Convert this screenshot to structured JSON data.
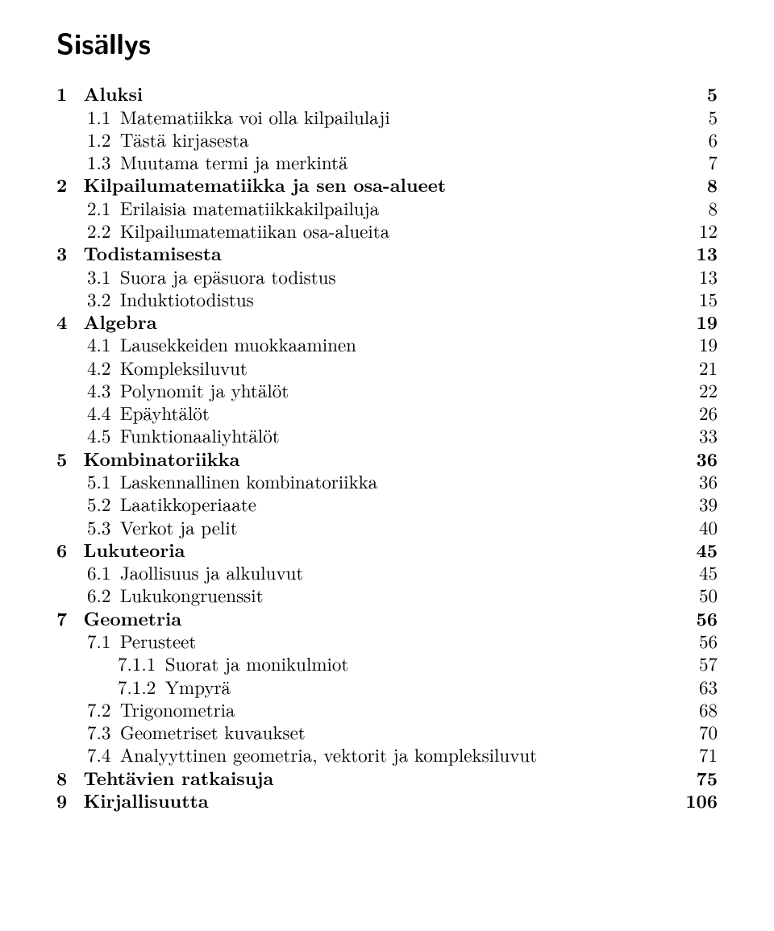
{
  "title": "Sisällys",
  "entries": [
    {
      "level": 0,
      "num": "1",
      "text": "Aluksi",
      "page": "5",
      "bold": true
    },
    {
      "level": 1,
      "num": "1.1",
      "text": "Matematiikka voi olla kilpailulaji",
      "page": "5"
    },
    {
      "level": 1,
      "num": "1.2",
      "text": "Tästä kirjasesta",
      "page": "6"
    },
    {
      "level": 1,
      "num": "1.3",
      "text": "Muutama termi ja merkintä",
      "page": "7"
    },
    {
      "level": 0,
      "num": "2",
      "text": "Kilpailumatematiikka ja sen osa-alueet",
      "page": "8",
      "bold": true
    },
    {
      "level": 1,
      "num": "2.1",
      "text": "Erilaisia matematiikkakilpailuja",
      "page": "8"
    },
    {
      "level": 1,
      "num": "2.2",
      "text": "Kilpailumatematiikan osa-alueita",
      "page": "12"
    },
    {
      "level": 0,
      "num": "3",
      "text": "Todistamisesta",
      "page": "13",
      "bold": true
    },
    {
      "level": 1,
      "num": "3.1",
      "text": "Suora ja epäsuora todistus",
      "page": "13"
    },
    {
      "level": 1,
      "num": "3.2",
      "text": "Induktiotodistus",
      "page": "15"
    },
    {
      "level": 0,
      "num": "4",
      "text": "Algebra",
      "page": "19",
      "bold": true
    },
    {
      "level": 1,
      "num": "4.1",
      "text": "Lausekkeiden muokkaaminen",
      "page": "19"
    },
    {
      "level": 1,
      "num": "4.2",
      "text": "Kompleksiluvut",
      "page": "21"
    },
    {
      "level": 1,
      "num": "4.3",
      "text": "Polynomit ja yhtälöt",
      "page": "22"
    },
    {
      "level": 1,
      "num": "4.4",
      "text": "Epäyhtälöt",
      "page": "26"
    },
    {
      "level": 1,
      "num": "4.5",
      "text": "Funktionaaliyhtälöt",
      "page": "33"
    },
    {
      "level": 0,
      "num": "5",
      "text": "Kombinatoriikka",
      "page": "36",
      "bold": true
    },
    {
      "level": 1,
      "num": "5.1",
      "text": "Laskennallinen kombinatoriikka",
      "page": "36"
    },
    {
      "level": 1,
      "num": "5.2",
      "text": "Laatikkoperiaate",
      "page": "39"
    },
    {
      "level": 1,
      "num": "5.3",
      "text": "Verkot ja pelit",
      "page": "40"
    },
    {
      "level": 0,
      "num": "6",
      "text": "Lukuteoria",
      "page": "45",
      "bold": true
    },
    {
      "level": 1,
      "num": "6.1",
      "text": "Jaollisuus ja alkuluvut",
      "page": "45"
    },
    {
      "level": 1,
      "num": "6.2",
      "text": "Lukukongruenssit",
      "page": "50"
    },
    {
      "level": 0,
      "num": "7",
      "text": "Geometria",
      "page": "56",
      "bold": true
    },
    {
      "level": 1,
      "num": "7.1",
      "text": "Perusteet",
      "page": "56"
    },
    {
      "level": 2,
      "num": "7.1.1",
      "text": "Suorat ja monikulmiot",
      "page": "57"
    },
    {
      "level": 2,
      "num": "7.1.2",
      "text": "Ympyrä",
      "page": "63"
    },
    {
      "level": 1,
      "num": "7.2",
      "text": "Trigonometria",
      "page": "68"
    },
    {
      "level": 1,
      "num": "7.3",
      "text": "Geometriset kuvaukset",
      "page": "70"
    },
    {
      "level": 1,
      "num": "7.4",
      "text": "Analyyttinen geometria, vektorit ja kompleksiluvut",
      "page": "71"
    },
    {
      "level": 0,
      "num": "8",
      "text": "Tehtävien ratkaisuja",
      "page": "75",
      "bold": true
    },
    {
      "level": 0,
      "num": "9",
      "text": "Kirjallisuutta",
      "page": "106",
      "bold": true
    }
  ]
}
